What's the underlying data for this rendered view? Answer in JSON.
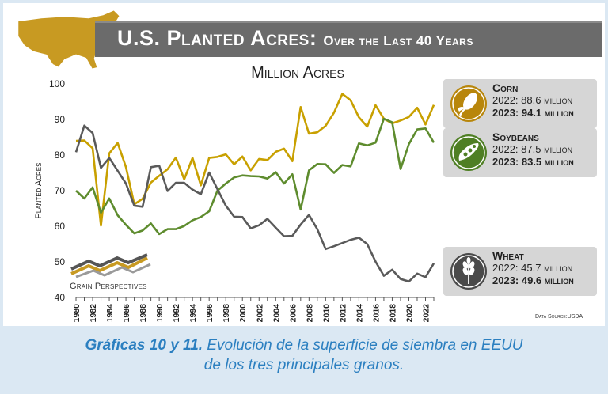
{
  "banner": {
    "title_main": "U.S. Planted Acres:",
    "title_sub": "Over the Last 40 Years"
  },
  "logo": {
    "text": "Grain Perspectives"
  },
  "data_source": "Data Source:USDA",
  "caption": {
    "bold": "Gráficas 10 y 11.",
    "line1": "Evolución de la superficie de siembra en EEUU",
    "line2": "de los tres principales granos."
  },
  "legend": [
    {
      "name": "Corn",
      "icon": "corn-icon",
      "color": "#c8a000",
      "line2_prefix": "2022: 88.6",
      "line2_unit": "million",
      "line3_prefix": "2023: 94.1",
      "line3_unit": "million"
    },
    {
      "name": "Soybeans",
      "icon": "soybean-icon",
      "color": "#5e8c2e",
      "line2_prefix": "2022: 87.5",
      "line2_unit": "million",
      "line3_prefix": "2023: 83.5",
      "line3_unit": "million"
    },
    {
      "name": "Wheat",
      "icon": "wheat-icon",
      "color": "#5a5a5a",
      "line2_prefix": "2022: 45.7",
      "line2_unit": "million",
      "line3_prefix": "2023: 49.6",
      "line3_unit": "million"
    }
  ],
  "chart_data": {
    "type": "line",
    "title": "Million Acres",
    "ylabel": "Planted Acres",
    "xlabel": "",
    "ylim": [
      40,
      100
    ],
    "yticks": [
      40,
      50,
      60,
      70,
      80,
      90,
      100
    ],
    "xticks": [
      "1980",
      "1982",
      "1984",
      "1986",
      "1988",
      "1990",
      "1992",
      "1994",
      "1996",
      "1998",
      "2000",
      "2002",
      "2004",
      "2006",
      "2008",
      "2010",
      "2012",
      "2014",
      "2016",
      "2018",
      "2020",
      "2022"
    ],
    "x": [
      1980,
      1981,
      1982,
      1983,
      1984,
      1985,
      1986,
      1987,
      1988,
      1989,
      1990,
      1991,
      1992,
      1993,
      1994,
      1995,
      1996,
      1997,
      1998,
      1999,
      2000,
      2001,
      2002,
      2003,
      2004,
      2005,
      2006,
      2007,
      2008,
      2009,
      2010,
      2011,
      2012,
      2013,
      2014,
      2015,
      2016,
      2017,
      2018,
      2019,
      2020,
      2021,
      2022,
      2023
    ],
    "grid": false,
    "series": [
      {
        "name": "Corn",
        "color": "#c8a000",
        "values": [
          84.0,
          84.1,
          81.9,
          60.2,
          80.5,
          83.4,
          76.6,
          66.2,
          67.7,
          72.3,
          74.2,
          76.0,
          79.3,
          73.2,
          79.2,
          71.5,
          79.2,
          79.5,
          80.2,
          77.4,
          79.6,
          75.7,
          78.9,
          78.6,
          80.9,
          81.8,
          78.3,
          93.5,
          86.0,
          86.4,
          88.2,
          91.9,
          97.2,
          95.4,
          90.6,
          88.0,
          94.0,
          90.2,
          88.9,
          89.7,
          90.7,
          93.3,
          88.6,
          94.1
        ]
      },
      {
        "name": "Soybeans",
        "color": "#5e8c2e",
        "values": [
          70.0,
          67.8,
          70.9,
          63.8,
          67.8,
          63.1,
          60.4,
          58.0,
          58.8,
          60.8,
          57.8,
          59.2,
          59.2,
          60.1,
          61.7,
          62.6,
          64.2,
          70.0,
          72.0,
          73.7,
          74.3,
          74.1,
          74.0,
          73.4,
          75.2,
          72.0,
          74.6,
          64.7,
          75.7,
          77.5,
          77.4,
          75.0,
          77.2,
          76.8,
          83.3,
          82.7,
          83.5,
          90.2,
          89.2,
          76.1,
          83.1,
          87.2,
          87.5,
          83.5
        ]
      },
      {
        "name": "Wheat",
        "color": "#5a5a5a",
        "values": [
          80.8,
          88.3,
          86.2,
          76.4,
          79.2,
          75.6,
          72.0,
          65.8,
          65.5,
          76.6,
          77.0,
          69.9,
          72.2,
          72.2,
          70.3,
          69.0,
          75.1,
          70.4,
          65.8,
          62.7,
          62.6,
          59.4,
          60.3,
          62.1,
          59.6,
          57.2,
          57.3,
          60.5,
          63.2,
          59.2,
          53.6,
          54.4,
          55.3,
          56.2,
          56.8,
          55.0,
          50.1,
          46.1,
          47.8,
          45.2,
          44.5,
          46.7,
          45.7,
          49.6
        ]
      }
    ]
  }
}
